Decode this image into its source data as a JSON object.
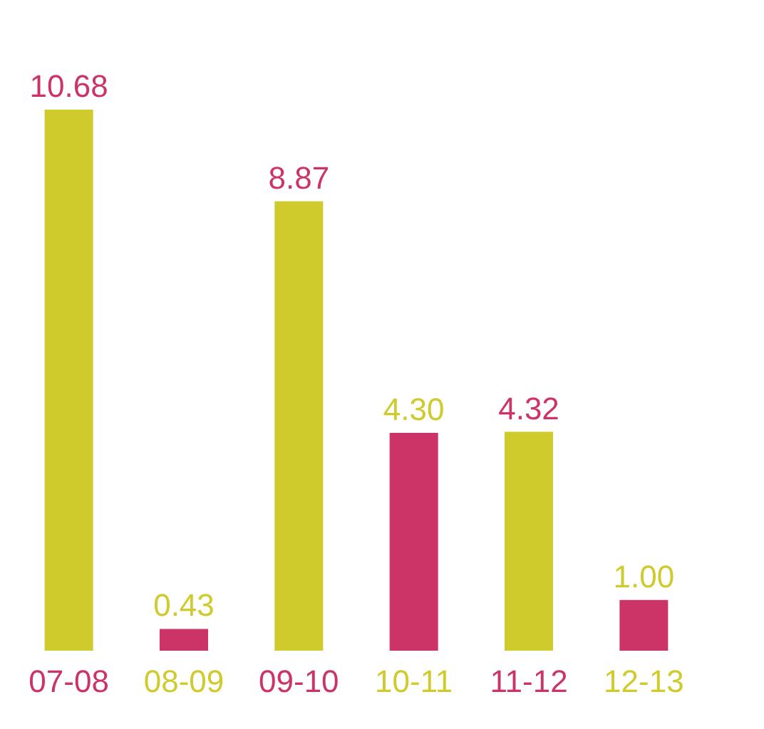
{
  "chart_data": {
    "type": "bar",
    "categories": [
      "07-08",
      "08-09",
      "09-10",
      "10-11",
      "11-12",
      "12-13"
    ],
    "values": [
      10.68,
      0.43,
      8.87,
      4.3,
      4.32,
      1.0
    ],
    "colors": [
      "#cfcb2d",
      "#cc3366",
      "#cfcb2d",
      "#cc3366",
      "#cfcb2d",
      "#cc3366"
    ],
    "value_labels": [
      "10.68",
      "0.43",
      "8.87",
      "4.30",
      "4.32",
      "1.00"
    ],
    "grid": false
  }
}
